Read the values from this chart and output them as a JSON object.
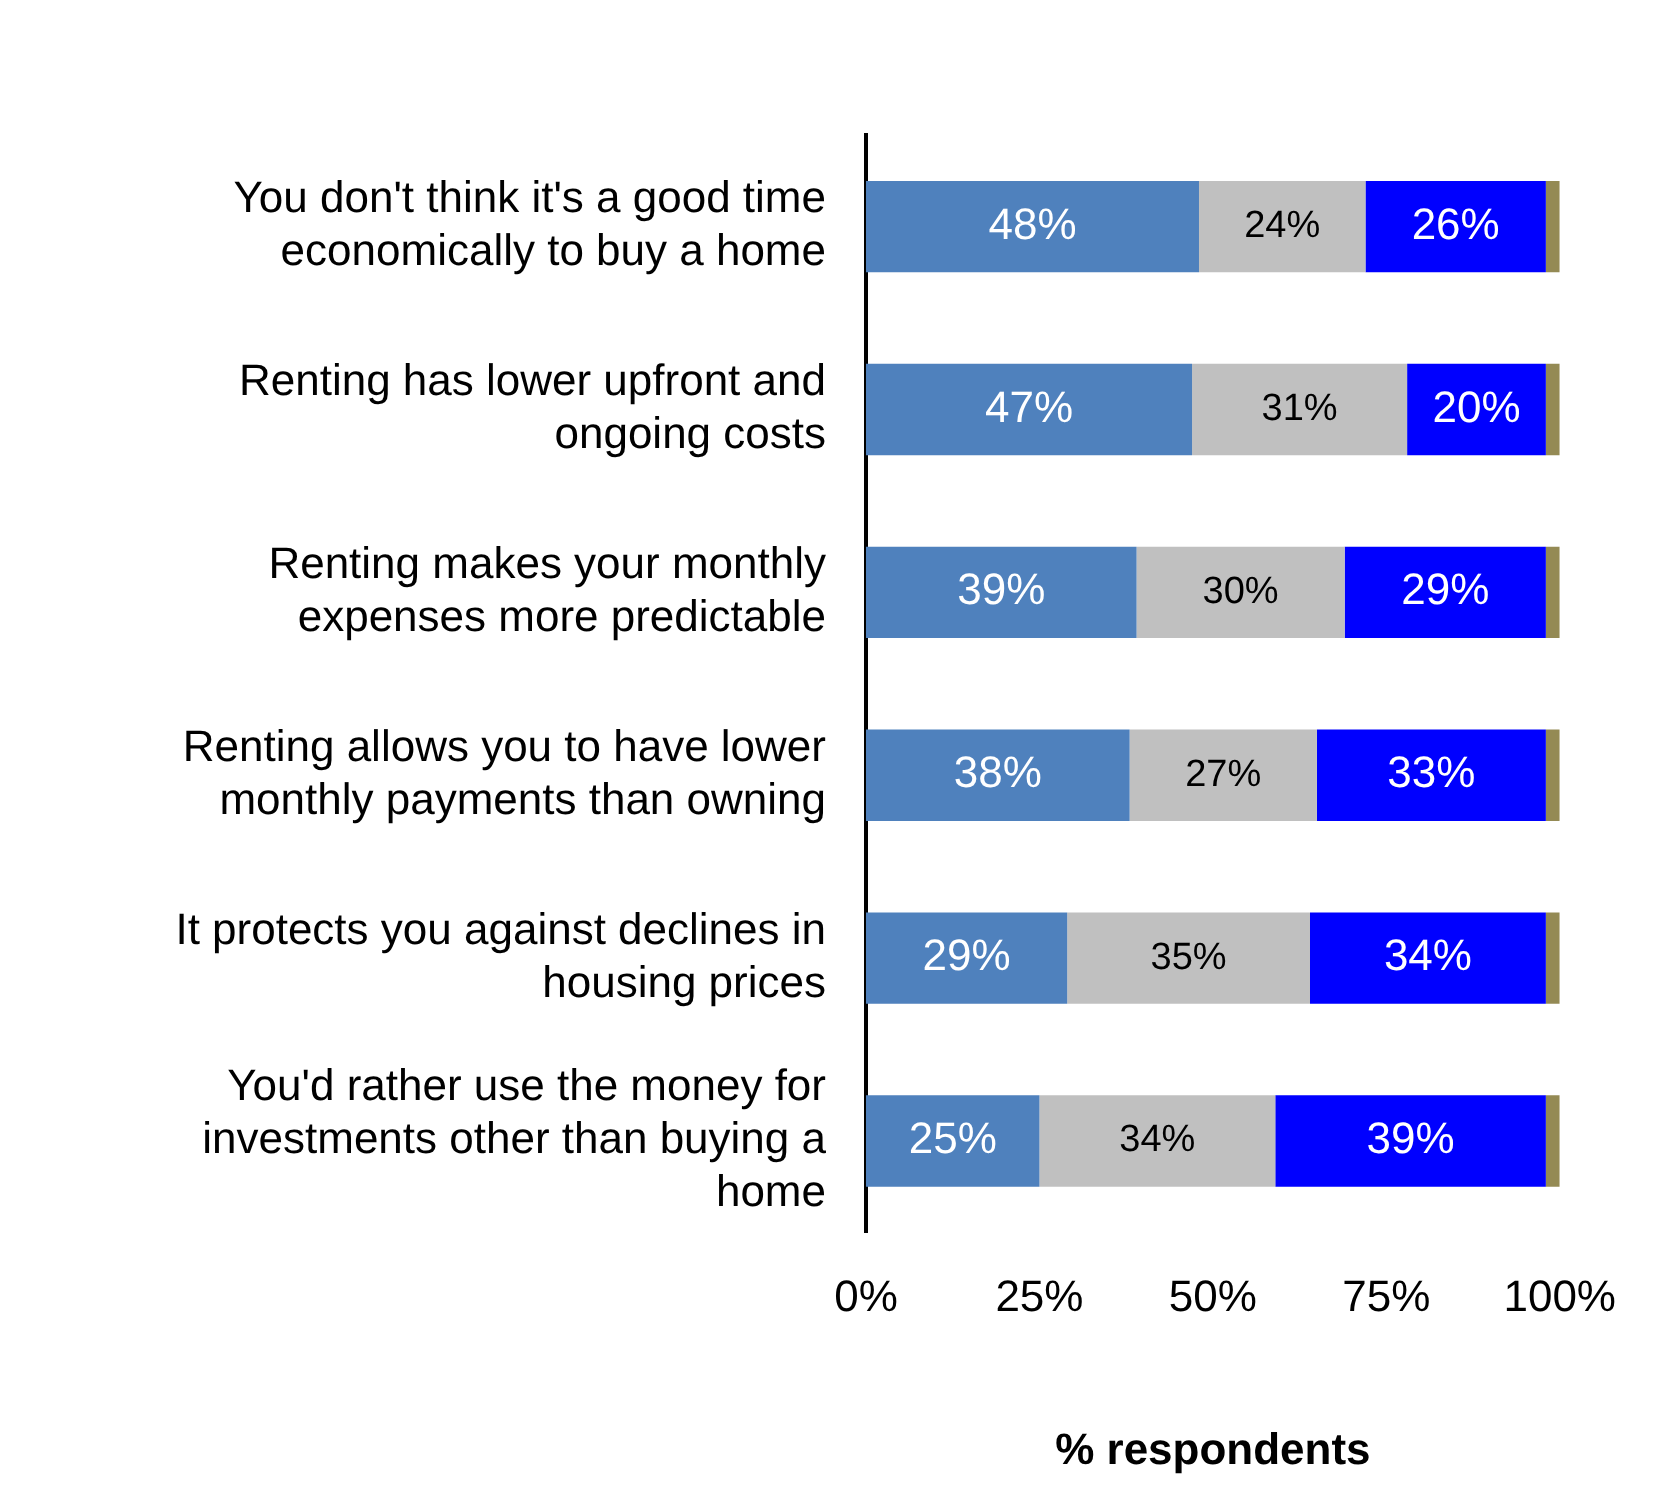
{
  "chart_data": {
    "type": "bar",
    "orientation": "horizontal",
    "stacked": true,
    "xlabel": "% respondents",
    "categories": [
      "You don't think it's a good time economically to buy a home",
      "Renting has lower upfront and ongoing costs",
      "Renting makes your monthly expenses more predictable",
      "Renting allows you to have lower monthly payments than owning",
      "It protects you against declines in housing prices",
      "You'd rather use the money for investments other than buying a home"
    ],
    "series": [
      {
        "color": "#4f81bd",
        "values": [
          48,
          47,
          39,
          38,
          29,
          25
        ],
        "value_labels": [
          "48%",
          "47%",
          "39%",
          "38%",
          "29%",
          "25%"
        ]
      },
      {
        "color": "#c0c0c0",
        "values": [
          24,
          31,
          30,
          27,
          35,
          34
        ],
        "value_labels": [
          "24%",
          "31%",
          "30%",
          "27%",
          "35%",
          "34%"
        ]
      },
      {
        "color": "#0000ff",
        "values": [
          26,
          20,
          29,
          33,
          34,
          39
        ],
        "value_labels": [
          "26%",
          "20%",
          "29%",
          "33%",
          "34%",
          "39%"
        ]
      },
      {
        "color": "#948a54",
        "values": [
          2,
          2,
          2,
          2,
          2,
          2
        ]
      }
    ],
    "xlim": [
      0,
      100
    ],
    "xticks": [
      {
        "value": 0,
        "label": "0%"
      },
      {
        "value": 25,
        "label": "25%"
      },
      {
        "value": 50,
        "label": "50%"
      },
      {
        "value": 75,
        "label": "75%"
      },
      {
        "value": 100,
        "label": "100%"
      }
    ],
    "grid": false,
    "legend": false
  }
}
